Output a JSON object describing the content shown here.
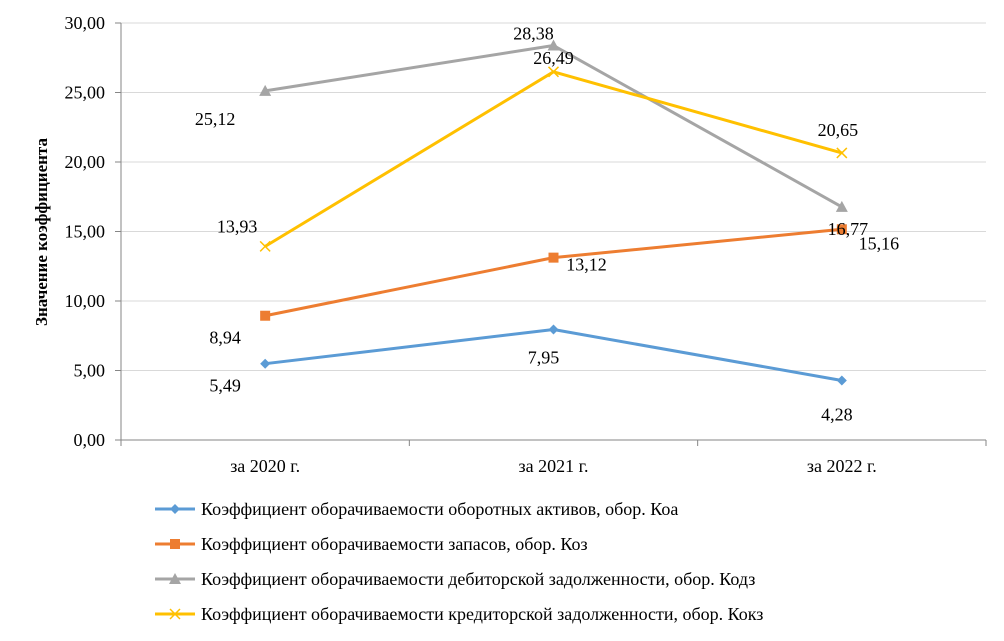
{
  "chart_data": {
    "type": "line",
    "title": "",
    "xlabel": "",
    "ylabel": "Значение коэффициента",
    "categories": [
      "за 2020 г.",
      "за 2021 г.",
      "за 2022 г."
    ],
    "ylim": [
      0,
      30
    ],
    "yticks": [
      "0,00",
      "5,00",
      "10,00",
      "15,00",
      "20,00",
      "25,00",
      "30,00"
    ],
    "grid": "horizontal",
    "legend_position": "bottom",
    "series": [
      {
        "name": "Коэффициент оборачиваемости оборотных активов, обор. Коа",
        "values": [
          5.49,
          7.95,
          4.28
        ],
        "labels": [
          "5,49",
          "7,95",
          "4,28"
        ],
        "color": "#5B9BD5",
        "marker": "diamond"
      },
      {
        "name": "Коэффициент оборачиваемости запасов, обор. Коз",
        "values": [
          8.94,
          13.12,
          15.16
        ],
        "labels": [
          "8,94",
          "13,12",
          "15,16"
        ],
        "color": "#ED7D31",
        "marker": "square"
      },
      {
        "name": "Коэффициент оборачиваемости дебиторской задолженности, обор. Кодз",
        "values": [
          25.12,
          28.38,
          16.77
        ],
        "labels": [
          "25,12",
          "28,38",
          "16,77"
        ],
        "color": "#A5A5A5",
        "marker": "triangle"
      },
      {
        "name": "Коэффициент оборачиваемости кредиторской задолженности, обор. Кокз",
        "values": [
          13.93,
          26.49,
          20.65
        ],
        "labels": [
          "13,93",
          "26,49",
          "20,65"
        ],
        "color": "#FFC000",
        "marker": "x"
      }
    ]
  }
}
